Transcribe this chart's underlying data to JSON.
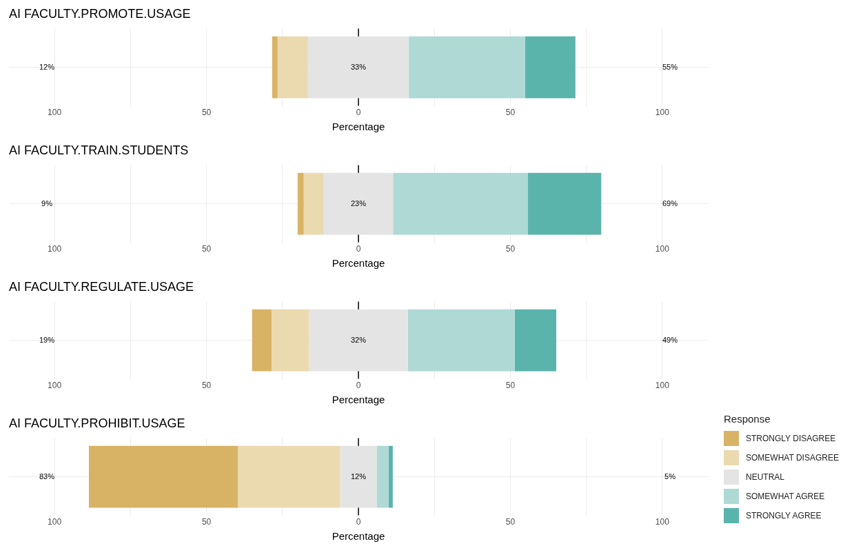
{
  "chart_data": [
    {
      "type": "bar",
      "title": "AI FACULTY.PROMOTE.USAGE",
      "xlabel": "Percentage",
      "orientation": "horizontal",
      "categories": [
        null
      ],
      "grid": true,
      "xlim": [
        -115,
        115
      ],
      "xticks": [
        {
          "value": -100,
          "label": "100"
        },
        {
          "value": -75,
          "label": null
        },
        {
          "value": -50,
          "label": "50"
        },
        {
          "value": -25,
          "label": null
        },
        0,
        {
          "value": 25,
          "label": null
        },
        50,
        {
          "value": 75,
          "label": null
        },
        100
      ],
      "series": [
        {
          "color": "#d8b365",
          "values": [
            1.8
          ],
          "base": [
            -28.4
          ]
        },
        {
          "color": "#ebd9b0",
          "values": [
            10.0
          ],
          "base": [
            -26.6
          ]
        },
        {
          "color": "#e4e4e4",
          "values": [
            33.2
          ],
          "base": [
            -16.6
          ]
        },
        {
          "color": "#aed9d5",
          "values": [
            38.2
          ],
          "base": [
            16.6
          ]
        },
        {
          "color": "#5ab4ac",
          "values": [
            16.6
          ],
          "base": [
            54.8
          ]
        }
      ],
      "ref_lines": [
        {
          "axis": "x",
          "value": 0,
          "color": "#000000"
        }
      ],
      "annotations": [
        "12%",
        "33%",
        "55%"
      ]
    },
    {
      "type": "bar",
      "title": "AI FACULTY.TRAIN.STUDENTS",
      "xlabel": "Percentage",
      "orientation": "horizontal",
      "categories": [
        null
      ],
      "grid": true,
      "xlim": [
        -115,
        115
      ],
      "xticks": [
        {
          "value": -100,
          "label": "100"
        },
        {
          "value": -75,
          "label": null
        },
        {
          "value": -50,
          "label": "50"
        },
        {
          "value": -25,
          "label": null
        },
        0,
        {
          "value": 25,
          "label": null
        },
        50,
        {
          "value": 75,
          "label": null
        },
        100
      ],
      "series": [
        {
          "color": "#d8b365",
          "values": [
            2.0
          ],
          "base": [
            -20.0
          ]
        },
        {
          "color": "#ebd9b0",
          "values": [
            6.6
          ],
          "base": [
            -18.0
          ]
        },
        {
          "color": "#e4e4e4",
          "values": [
            22.8
          ],
          "base": [
            -11.4
          ]
        },
        {
          "color": "#aed9d5",
          "values": [
            44.4
          ],
          "base": [
            11.4
          ]
        },
        {
          "color": "#5ab4ac",
          "values": [
            24.1
          ],
          "base": [
            55.8
          ]
        }
      ],
      "ref_lines": [
        {
          "axis": "x",
          "value": 0,
          "color": "#000000"
        }
      ],
      "annotations": [
        "9%",
        "23%",
        "69%"
      ]
    },
    {
      "type": "bar",
      "title": "AI FACULTY.REGULATE.USAGE",
      "xlabel": "Percentage",
      "orientation": "horizontal",
      "categories": [
        null
      ],
      "grid": true,
      "xlim": [
        -115,
        115
      ],
      "xticks": [
        {
          "value": -100,
          "label": "100"
        },
        {
          "value": -75,
          "label": null
        },
        {
          "value": -50,
          "label": "50"
        },
        {
          "value": -25,
          "label": null
        },
        0,
        {
          "value": 25,
          "label": null
        },
        50,
        {
          "value": 75,
          "label": null
        },
        100
      ],
      "series": [
        {
          "color": "#d8b365",
          "values": [
            6.4
          ],
          "base": [
            -35.0
          ]
        },
        {
          "color": "#ebd9b0",
          "values": [
            12.3
          ],
          "base": [
            -28.6
          ]
        },
        {
          "color": "#e4e4e4",
          "values": [
            32.6
          ],
          "base": [
            -16.3
          ]
        },
        {
          "color": "#aed9d5",
          "values": [
            35.1
          ],
          "base": [
            16.3
          ]
        },
        {
          "color": "#5ab4ac",
          "values": [
            13.7
          ],
          "base": [
            51.4
          ]
        }
      ],
      "ref_lines": [
        {
          "axis": "x",
          "value": 0,
          "color": "#000000"
        }
      ],
      "annotations": [
        "19%",
        "32%",
        "49%"
      ]
    },
    {
      "type": "bar",
      "title": "AI FACULTY.PROHIBIT.USAGE",
      "xlabel": "Percentage",
      "orientation": "horizontal",
      "categories": [
        null
      ],
      "grid": true,
      "xlim": [
        -115,
        115
      ],
      "xticks": [
        {
          "value": -100,
          "label": "100"
        },
        {
          "value": -75,
          "label": null
        },
        {
          "value": -50,
          "label": "50"
        },
        {
          "value": -25,
          "label": null
        },
        0,
        {
          "value": 25,
          "label": null
        },
        50,
        {
          "value": 75,
          "label": null
        },
        100
      ],
      "legend": "right",
      "legend_title": "Response",
      "series": [
        {
          "name": "STRONGLY DISAGREE",
          "color": "#d8b365",
          "values": [
            49.0
          ],
          "base": [
            -88.7
          ]
        },
        {
          "name": "SOMEWHAT DISAGREE",
          "color": "#ebd9b0",
          "values": [
            33.7
          ],
          "base": [
            -39.7
          ]
        },
        {
          "name": "NEUTRAL",
          "color": "#e4e4e4",
          "values": [
            12.0
          ],
          "base": [
            -6.0
          ]
        },
        {
          "name": "SOMEWHAT AGREE",
          "color": "#aed9d5",
          "values": [
            3.9
          ],
          "base": [
            6.0
          ]
        },
        {
          "name": "STRONGLY AGREE",
          "color": "#5ab4ac",
          "values": [
            1.4
          ],
          "base": [
            9.9
          ]
        }
      ],
      "ref_lines": [
        {
          "axis": "x",
          "value": 0,
          "color": "#000000"
        }
      ],
      "annotations": [
        "83%",
        "12%",
        "5%"
      ]
    }
  ]
}
